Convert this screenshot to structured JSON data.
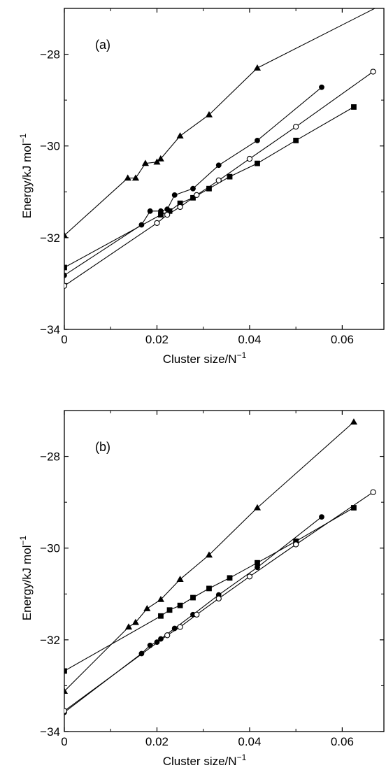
{
  "chart_data": [
    {
      "type": "line",
      "panel_label": "(a)",
      "xlabel": "Cluster size/N",
      "xlabel_sup": "−1",
      "ylabel": "Energy/kJ mol",
      "ylabel_sup": "−1",
      "xlim": [
        0,
        0.069
      ],
      "ylim": [
        -34,
        -27
      ],
      "xticks": [
        0,
        0.02,
        0.04,
        0.06
      ],
      "xtick_labels": [
        "0",
        "0.02",
        "0.04",
        "0.06"
      ],
      "yticks": [
        -34,
        -32,
        -30,
        -28
      ],
      "ytick_labels": [
        "−34",
        "−32",
        "−30",
        "−28"
      ],
      "grid": false,
      "series": [
        {
          "marker": "triangle",
          "x": [
            0,
            0.0137,
            0.0154,
            0.0175,
            0.02,
            0.0208,
            0.025,
            0.03125,
            0.04167,
            0.069
          ],
          "y": [
            -31.95,
            -30.7,
            -30.7,
            -30.38,
            -30.35,
            -30.28,
            -29.78,
            -29.32,
            -28.3,
            -26.9
          ]
        },
        {
          "marker": "circle-filled",
          "x": [
            0,
            0.01667,
            0.01852,
            0.02083,
            0.02222,
            0.02381,
            0.02778,
            0.03333,
            0.04167,
            0.05556
          ],
          "y": [
            -32.82,
            -31.72,
            -31.42,
            -31.42,
            -31.38,
            -31.07,
            -30.93,
            -30.42,
            -29.88,
            -28.72
          ]
        },
        {
          "marker": "square-filled",
          "x": [
            0,
            0.02083,
            0.02273,
            0.025,
            0.02778,
            0.03125,
            0.03571,
            0.04167,
            0.05,
            0.0625
          ],
          "y": [
            -32.65,
            -31.5,
            -31.42,
            -31.25,
            -31.13,
            -30.93,
            -30.67,
            -30.38,
            -29.88,
            -29.15
          ]
        },
        {
          "marker": "circle-open",
          "x": [
            0,
            0.02,
            0.02222,
            0.025,
            0.02857,
            0.03333,
            0.04,
            0.05,
            0.06667
          ],
          "y": [
            -33.05,
            -31.68,
            -31.5,
            -31.33,
            -31.07,
            -30.75,
            -30.28,
            -29.58,
            -28.38
          ]
        }
      ]
    },
    {
      "type": "line",
      "panel_label": "(b)",
      "xlabel": "Cluster size/N",
      "xlabel_sup": "−1",
      "ylabel": "Energy/kJ mol",
      "ylabel_sup": "−1",
      "xlim": [
        0,
        0.069
      ],
      "ylim": [
        -34,
        -27
      ],
      "xticks": [
        0,
        0.02,
        0.04,
        0.06
      ],
      "xtick_labels": [
        "0",
        "0.02",
        "0.04",
        "0.06"
      ],
      "yticks": [
        -34,
        -32,
        -30,
        -28
      ],
      "ytick_labels": [
        "−34",
        "−32",
        "−30",
        "−28"
      ],
      "grid": false,
      "series": [
        {
          "marker": "triangle",
          "x": [
            0,
            0.01389,
            0.01538,
            0.01786,
            0.02083,
            0.025,
            0.03125,
            0.04167,
            0.0625
          ],
          "y": [
            -33.12,
            -31.72,
            -31.62,
            -31.32,
            -31.12,
            -30.68,
            -30.15,
            -29.12,
            -27.25
          ]
        },
        {
          "marker": "circle-filled",
          "x": [
            0,
            0.01667,
            0.01852,
            0.02,
            0.02083,
            0.02381,
            0.02778,
            0.03333,
            0.04167,
            0.05556
          ],
          "y": [
            -33.58,
            -32.3,
            -32.12,
            -32.05,
            -31.98,
            -31.75,
            -31.45,
            -31.02,
            -30.42,
            -29.32
          ]
        },
        {
          "marker": "square-filled",
          "x": [
            0,
            0.02083,
            0.02273,
            0.025,
            0.02778,
            0.03125,
            0.03571,
            0.04167,
            0.05,
            0.0625
          ],
          "y": [
            -32.68,
            -31.48,
            -31.35,
            -31.25,
            -31.08,
            -30.88,
            -30.65,
            -30.32,
            -29.85,
            -29.12
          ]
        },
        {
          "marker": "circle-open",
          "x": [
            0,
            0.02222,
            0.025,
            0.02857,
            0.03333,
            0.04,
            0.05,
            0.06667
          ],
          "y": [
            -33.55,
            -31.9,
            -31.72,
            -31.45,
            -31.1,
            -30.62,
            -29.92,
            -28.78
          ]
        }
      ]
    }
  ]
}
